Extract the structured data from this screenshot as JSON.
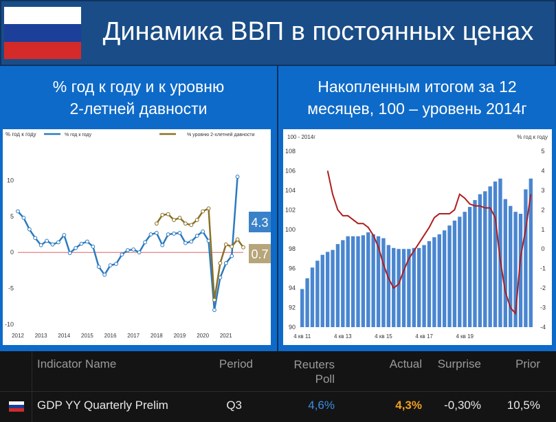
{
  "header": {
    "title": "Динамика ВВП в постоянных ценах",
    "flag_colors": [
      "#ffffff",
      "#1c3f9a",
      "#d42a2a"
    ]
  },
  "left_panel": {
    "title_line1": "% год к году и к уровню",
    "title_line2": "2-летней давности",
    "legend_1": "% год к году",
    "legend_2": "% уровню 2-хлетней давности",
    "label_yoy": "4.3",
    "label_2y": "0.7"
  },
  "right_panel": {
    "title_line1": "Накопленным итогом за 12",
    "title_line2": "месяцев, 100 – уровень 2014г",
    "left_axis_label": "100 - 2014г",
    "right_axis_label": "% год к году"
  },
  "table": {
    "headers": [
      "Indicator Name",
      "Period",
      "Reuters Poll",
      "Actual",
      "Surprise",
      "Prior"
    ],
    "row": {
      "name": "GDP YY Quarterly Prelim",
      "period": "Q3",
      "poll": "4,6%",
      "actual": "4,3%",
      "surprise": "-0,30%",
      "prior": "10,5%"
    }
  },
  "chart_data": [
    {
      "type": "line",
      "ylabel": "% год к году",
      "ylim": [
        -10,
        15
      ],
      "xlim": [
        2012,
        2021.75
      ],
      "x_ticks": [
        "2012",
        "2013",
        "2014",
        "2015",
        "2016",
        "2017",
        "2018",
        "2019",
        "2020",
        "2021"
      ],
      "y_ticks": [
        -10,
        -5,
        0,
        5,
        10
      ],
      "grid": false,
      "series": [
        {
          "name": "% год к году",
          "color": "#2a7abf",
          "x": [
            2012.0,
            2012.25,
            2012.5,
            2012.75,
            2013.0,
            2013.25,
            2013.5,
            2013.75,
            2014.0,
            2014.25,
            2014.5,
            2014.75,
            2015.0,
            2015.25,
            2015.5,
            2015.75,
            2016.0,
            2016.25,
            2016.5,
            2016.75,
            2017.0,
            2017.25,
            2017.5,
            2017.75,
            2018.0,
            2018.25,
            2018.5,
            2018.75,
            2019.0,
            2019.25,
            2019.5,
            2019.75,
            2020.0,
            2020.25,
            2020.5,
            2020.75,
            2021.0,
            2021.25,
            2021.5
          ],
          "values": [
            5.7,
            4.8,
            3.2,
            2.0,
            1.0,
            1.6,
            1.1,
            1.4,
            2.4,
            -0.1,
            0.6,
            1.2,
            1.5,
            0.8,
            -2.0,
            -3.1,
            -1.8,
            -1.6,
            -0.3,
            0.3,
            0.4,
            0.0,
            1.4,
            2.5,
            2.7,
            1.0,
            2.5,
            2.6,
            2.7,
            1.3,
            1.5,
            2.3,
            2.9,
            1.6,
            -8.0,
            -3.5,
            -1.5,
            -0.5,
            10.5
          ]
        },
        {
          "name": "% уровню 2-хлетней давности",
          "color": "#8a7126",
          "x": [
            2018.0,
            2018.25,
            2018.5,
            2018.75,
            2019.0,
            2019.25,
            2019.5,
            2019.75,
            2020.0,
            2020.25,
            2020.5,
            2020.75,
            2021.0,
            2021.25,
            2021.5,
            2021.75
          ],
          "values": [
            4.0,
            5.2,
            5.3,
            4.5,
            4.8,
            4.0,
            3.8,
            4.5,
            5.7,
            6.1,
            -6.6,
            -1.5,
            1.1,
            0.8,
            1.8,
            0.7
          ]
        }
      ]
    },
    {
      "type": "bar",
      "ylabel": "100 - 2014г",
      "y2label": "% год к году",
      "ylim": [
        90,
        108
      ],
      "y2lim": [
        -4,
        5
      ],
      "x_ticks": [
        "4 кв 11",
        "4 кв 13",
        "4 кв 15",
        "4 кв 17",
        "4 кв 19"
      ],
      "series": [
        {
          "name": "100 - 2014г",
          "color": "#4a86d0",
          "values": [
            93.9,
            95.0,
            96.1,
            96.8,
            97.4,
            97.7,
            97.9,
            98.5,
            98.9,
            99.3,
            99.3,
            99.3,
            99.4,
            99.7,
            99.5,
            99.3,
            99.1,
            98.4,
            98.1,
            98.0,
            98.0,
            98.0,
            98.1,
            98.1,
            98.4,
            98.8,
            99.2,
            99.5,
            99.9,
            100.4,
            100.9,
            101.3,
            101.8,
            102.3,
            103.0,
            103.6,
            103.9,
            104.4,
            104.9,
            105.2,
            103.1,
            102.4,
            101.8,
            101.6,
            104.1,
            105.2
          ]
        },
        {
          "name": "% год к году",
          "color": "#b01c1c",
          "values": [
            4.0,
            2.8,
            2.0,
            1.7,
            1.7,
            1.5,
            1.3,
            1.3,
            1.1,
            0.7,
            0.1,
            -0.8,
            -1.5,
            -2.0,
            -1.8,
            -1.1,
            -0.5,
            -0.1,
            0.3,
            0.7,
            1.1,
            1.6,
            1.8,
            1.8,
            1.8,
            2.0,
            2.8,
            2.6,
            2.3,
            2.2,
            2.2,
            2.1,
            2.1,
            1.6,
            -0.6,
            -2.2,
            -3.0,
            -3.3,
            -0.4,
            1.0,
            2.8
          ]
        }
      ]
    }
  ]
}
